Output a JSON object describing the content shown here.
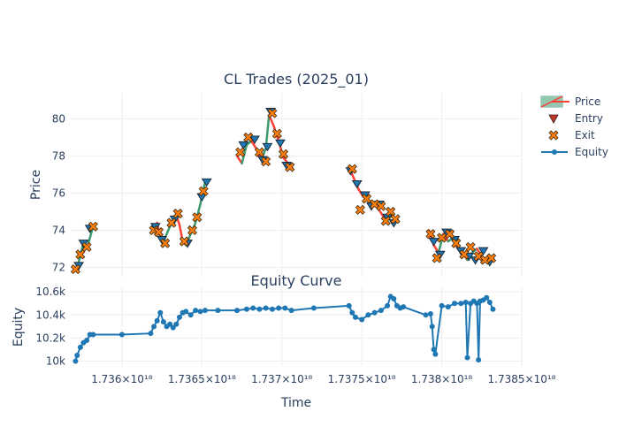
{
  "chart_data": [
    {
      "type": "candlestick",
      "title": "CL Trades (2025_01)",
      "xlabel": "",
      "ylabel": "Price",
      "xlim": [
        1.73568e+18,
        1.7385e+18
      ],
      "ylim": [
        71.5,
        81.4
      ],
      "yticks": [
        "72",
        "74",
        "76",
        "78",
        "80"
      ],
      "ytick_values": [
        72,
        74,
        76,
        78,
        80
      ],
      "grid": true,
      "legend": {
        "placement": "top-right",
        "entries": [
          {
            "label": "Price",
            "kind": "candle"
          },
          {
            "label": "Entry",
            "kind": "triangle-down"
          },
          {
            "label": "Exit",
            "kind": "x"
          },
          {
            "label": "Equity",
            "kind": "line-marker"
          }
        ]
      },
      "colors": {
        "increasing": "#3D9970",
        "decreasing": "#FF4136",
        "entry": "#c0392b",
        "exit": "#ff7f0e",
        "equity": "#1f77b4"
      },
      "price_path": [
        [
          1.73572e+18,
          72.0
        ],
        [
          1.73574e+18,
          72.6
        ],
        [
          1.73576e+18,
          73.4
        ],
        [
          1.73578e+18,
          73.0
        ],
        [
          1.7358e+18,
          73.6
        ],
        [
          1.73582e+18,
          74.2
        ],
        [
          1.7362e+18,
          74.0
        ],
        [
          1.73622e+18,
          74.4
        ],
        [
          1.73624e+18,
          73.6
        ],
        [
          1.73626e+18,
          73.4
        ],
        [
          1.7363e+18,
          74.2
        ],
        [
          1.73634e+18,
          74.8
        ],
        [
          1.73636e+18,
          74.3
        ],
        [
          1.73638e+18,
          73.4
        ],
        [
          1.7364e+18,
          73.2
        ],
        [
          1.73643e+18,
          73.8
        ],
        [
          1.73646e+18,
          74.4
        ],
        [
          1.73649e+18,
          75.4
        ],
        [
          1.73652e+18,
          76.6
        ],
        [
          1.73672e+18,
          78.0
        ],
        [
          1.73675e+18,
          77.6
        ],
        [
          1.73678e+18,
          78.6
        ],
        [
          1.73681e+18,
          78.8
        ],
        [
          1.73684e+18,
          78.4
        ],
        [
          1.73687e+18,
          77.8
        ],
        [
          1.7369e+18,
          78.4
        ],
        [
          1.73692e+18,
          80.2
        ],
        [
          1.73695e+18,
          79.6
        ],
        [
          1.73698e+18,
          78.8
        ],
        [
          1.73701e+18,
          77.9
        ],
        [
          1.73704e+18,
          77.6
        ],
        [
          1.73707e+18,
          77.3
        ],
        [
          1.73742e+18,
          77.4
        ],
        [
          1.73745e+18,
          76.8
        ],
        [
          1.73748e+18,
          76.2
        ],
        [
          1.73751e+18,
          75.8
        ],
        [
          1.73754e+18,
          75.6
        ],
        [
          1.73757e+18,
          75.4
        ],
        [
          1.7376e+18,
          75.2
        ],
        [
          1.73763e+18,
          74.8
        ],
        [
          1.73766e+18,
          74.6
        ],
        [
          1.73769e+18,
          74.8
        ],
        [
          1.73772e+18,
          74.5
        ],
        [
          1.73792e+18,
          74.0
        ],
        [
          1.73795e+18,
          73.2
        ],
        [
          1.73798e+18,
          72.8
        ],
        [
          1.73801e+18,
          73.8
        ],
        [
          1.73804e+18,
          73.4
        ],
        [
          1.73807e+18,
          73.6
        ],
        [
          1.7381e+18,
          73.0
        ],
        [
          1.73813e+18,
          72.8
        ],
        [
          1.73816e+18,
          72.4
        ],
        [
          1.73819e+18,
          72.8
        ],
        [
          1.73822e+18,
          73.0
        ],
        [
          1.73825e+18,
          72.6
        ],
        [
          1.73828e+18,
          72.4
        ],
        [
          1.73831e+18,
          72.6
        ]
      ],
      "entries": [
        [
          1.73573e+18,
          72.1
        ],
        [
          1.73576e+18,
          73.3
        ],
        [
          1.7358e+18,
          74.1
        ],
        [
          1.73621e+18,
          74.2
        ],
        [
          1.73625e+18,
          73.5
        ],
        [
          1.73633e+18,
          74.6
        ],
        [
          1.73641e+18,
          73.3
        ],
        [
          1.7365e+18,
          75.8
        ],
        [
          1.73653e+18,
          76.6
        ],
        [
          1.73676e+18,
          78.6
        ],
        [
          1.73683e+18,
          78.9
        ],
        [
          1.73688e+18,
          77.8
        ],
        [
          1.73691e+18,
          78.5
        ],
        [
          1.73693e+18,
          80.4
        ],
        [
          1.73699e+18,
          78.7
        ],
        [
          1.73703e+18,
          77.5
        ],
        [
          1.73743e+18,
          77.2
        ],
        [
          1.73747e+18,
          76.5
        ],
        [
          1.73752e+18,
          75.9
        ],
        [
          1.73756e+18,
          75.3
        ],
        [
          1.73761e+18,
          75.4
        ],
        [
          1.73766e+18,
          74.7
        ],
        [
          1.7377e+18,
          74.4
        ],
        [
          1.73795e+18,
          73.4
        ],
        [
          1.73799e+18,
          72.7
        ],
        [
          1.73803e+18,
          73.9
        ],
        [
          1.73808e+18,
          73.5
        ],
        [
          1.73812e+18,
          72.9
        ],
        [
          1.73817e+18,
          72.6
        ],
        [
          1.73821e+18,
          72.4
        ],
        [
          1.73826e+18,
          72.9
        ],
        [
          1.7383e+18,
          72.3
        ]
      ],
      "exits": [
        [
          1.73571e+18,
          71.9
        ],
        [
          1.73574e+18,
          72.7
        ],
        [
          1.73578e+18,
          73.1
        ],
        [
          1.73582e+18,
          74.2
        ],
        [
          1.7362e+18,
          74.0
        ],
        [
          1.73623e+18,
          73.9
        ],
        [
          1.73627e+18,
          73.3
        ],
        [
          1.73631e+18,
          74.4
        ],
        [
          1.73635e+18,
          74.9
        ],
        [
          1.73639e+18,
          73.4
        ],
        [
          1.73644e+18,
          74.0
        ],
        [
          1.73647e+18,
          74.7
        ],
        [
          1.73651e+18,
          76.1
        ],
        [
          1.73674e+18,
          78.2
        ],
        [
          1.73679e+18,
          79.0
        ],
        [
          1.73686e+18,
          78.2
        ],
        [
          1.7369e+18,
          77.7
        ],
        [
          1.73694e+18,
          80.3
        ],
        [
          1.73697e+18,
          79.2
        ],
        [
          1.73701e+18,
          78.1
        ],
        [
          1.73705e+18,
          77.4
        ],
        [
          1.73744e+18,
          77.3
        ],
        [
          1.73749e+18,
          75.1
        ],
        [
          1.73753e+18,
          75.7
        ],
        [
          1.73758e+18,
          75.4
        ],
        [
          1.73762e+18,
          75.3
        ],
        [
          1.73765e+18,
          74.5
        ],
        [
          1.73768e+18,
          75.0
        ],
        [
          1.73771e+18,
          74.6
        ],
        [
          1.73793e+18,
          73.8
        ],
        [
          1.73797e+18,
          72.5
        ],
        [
          1.738e+18,
          73.6
        ],
        [
          1.73805e+18,
          73.8
        ],
        [
          1.73809e+18,
          73.3
        ],
        [
          1.73814e+18,
          72.7
        ],
        [
          1.73818e+18,
          73.1
        ],
        [
          1.73823e+18,
          72.6
        ],
        [
          1.73827e+18,
          72.4
        ],
        [
          1.73831e+18,
          72.5
        ]
      ]
    },
    {
      "type": "line",
      "title": "Equity Curve",
      "xlabel": "Time",
      "ylabel": "Equity",
      "xlim": [
        1.73568e+18,
        1.7385e+18
      ],
      "ylim": [
        9950,
        10640
      ],
      "yticks": [
        "10k",
        "10.2k",
        "10.4k",
        "10.6k"
      ],
      "ytick_values": [
        10000,
        10200,
        10400,
        10600
      ],
      "xticks": [
        "1.736×10¹⁸",
        "1.7365×10¹⁸",
        "1.737×10¹⁸",
        "1.7375×10¹⁸",
        "1.738×10¹⁸",
        "1.7385×10¹⁸"
      ],
      "xtick_values": [
        1.736e+18,
        1.7365e+18,
        1.737e+18,
        1.7375e+18,
        1.738e+18,
        1.7385e+18
      ],
      "grid": true,
      "series": [
        {
          "name": "Equity",
          "x": [
            1.73571e+18,
            1.73572e+18,
            1.73574e+18,
            1.73576e+18,
            1.73578e+18,
            1.7358e+18,
            1.73582e+18,
            1.736e+18,
            1.73618e+18,
            1.7362e+18,
            1.73622e+18,
            1.73624e+18,
            1.73626e+18,
            1.73628e+18,
            1.7363e+18,
            1.73632e+18,
            1.73634e+18,
            1.73636e+18,
            1.73638e+18,
            1.7364e+18,
            1.73643e+18,
            1.73646e+18,
            1.73649e+18,
            1.73652e+18,
            1.7366e+18,
            1.73672e+18,
            1.73678e+18,
            1.73682e+18,
            1.73686e+18,
            1.7369e+18,
            1.73694e+18,
            1.73698e+18,
            1.73702e+18,
            1.73706e+18,
            1.7372e+18,
            1.73742e+18,
            1.73744e+18,
            1.73746e+18,
            1.7375e+18,
            1.73754e+18,
            1.73758e+18,
            1.73762e+18,
            1.73766e+18,
            1.73768e+18,
            1.7377e+18,
            1.73772e+18,
            1.73774e+18,
            1.73776e+18,
            1.7379e+18,
            1.73793e+18,
            1.73794e+18,
            1.73795e+18,
            1.73796e+18,
            1.738e+18,
            1.73804e+18,
            1.73808e+18,
            1.73812e+18,
            1.73815e+18,
            1.73816e+18,
            1.73818e+18,
            1.7382e+18,
            1.73822e+18,
            1.73823e+18,
            1.73824e+18,
            1.73826e+18,
            1.73828e+18,
            1.7383e+18,
            1.73832e+18
          ],
          "values": [
            10000,
            10050,
            10120,
            10160,
            10180,
            10230,
            10230,
            10230,
            10240,
            10300,
            10350,
            10420,
            10340,
            10300,
            10320,
            10290,
            10320,
            10380,
            10420,
            10430,
            10400,
            10440,
            10430,
            10440,
            10440,
            10440,
            10450,
            10460,
            10450,
            10460,
            10450,
            10460,
            10460,
            10440,
            10460,
            10480,
            10420,
            10380,
            10360,
            10400,
            10420,
            10440,
            10480,
            10560,
            10540,
            10480,
            10460,
            10470,
            10400,
            10410,
            10300,
            10100,
            10060,
            10480,
            10470,
            10500,
            10500,
            10510,
            10030,
            10500,
            10520,
            10500,
            10010,
            10520,
            10530,
            10550,
            10510,
            10450
          ]
        }
      ]
    }
  ]
}
